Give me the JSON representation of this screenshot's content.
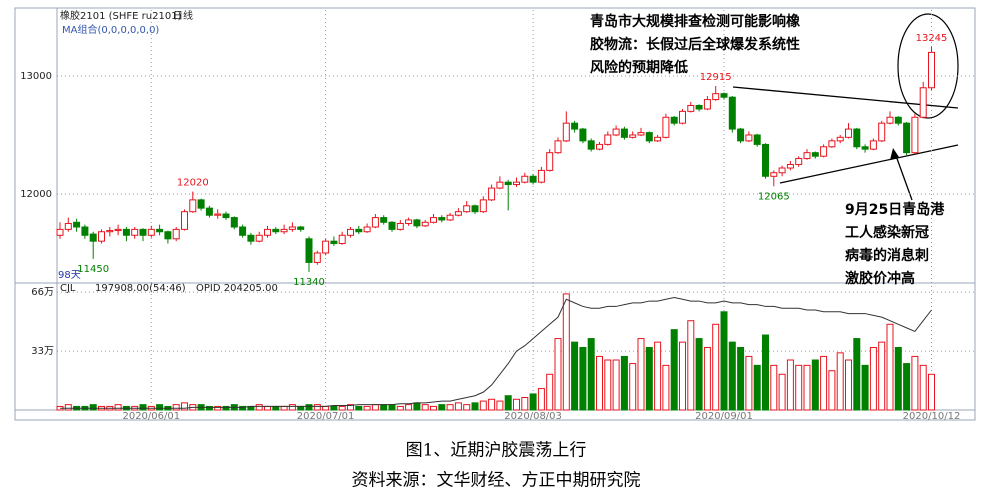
{
  "chart_data": {
    "type": "candlestick",
    "header": {
      "symbol": "橡胶2101 (SHFE ru2101)",
      "period": "日线",
      "ma": "MA组合(0,0,0,0,0,0)",
      "vol_name": "CJL",
      "vol_info": "197908.00(54:46)",
      "oi_info": "OPID 204205.00",
      "days": "98天"
    },
    "categories": [
      null,
      null,
      null,
      null,
      null,
      null,
      null,
      null,
      null,
      null,
      null,
      "2020/06/01",
      null,
      null,
      null,
      null,
      null,
      null,
      null,
      null,
      null,
      null,
      null,
      null,
      null,
      null,
      null,
      null,
      null,
      null,
      null,
      null,
      "2020/07/01",
      null,
      null,
      null,
      null,
      null,
      null,
      null,
      null,
      null,
      null,
      null,
      null,
      null,
      null,
      null,
      null,
      null,
      null,
      null,
      null,
      null,
      null,
      null,
      null,
      "2020/08/03",
      null,
      null,
      null,
      null,
      null,
      null,
      null,
      null,
      null,
      null,
      null,
      null,
      null,
      null,
      null,
      null,
      null,
      null,
      null,
      null,
      null,
      null,
      "2020/09/01",
      null,
      null,
      null,
      null,
      null,
      null,
      null,
      null,
      null,
      null,
      null,
      null,
      null,
      null,
      null,
      null,
      null,
      null,
      null,
      null,
      null,
      null,
      null,
      null,
      "2020/10/12"
    ],
    "ohlc": [
      [
        11650,
        11760,
        11620,
        11700
      ],
      [
        11700,
        11800,
        11680,
        11750
      ],
      [
        11760,
        11790,
        11680,
        11720
      ],
      [
        11720,
        11740,
        11620,
        11650
      ],
      [
        11660,
        11680,
        11450,
        11600
      ],
      [
        11600,
        11700,
        11580,
        11680
      ],
      [
        11680,
        11720,
        11640,
        11690
      ],
      [
        11690,
        11740,
        11650,
        11700
      ],
      [
        11700,
        11720,
        11600,
        11650
      ],
      [
        11650,
        11720,
        11620,
        11700
      ],
      [
        11700,
        11710,
        11600,
        11650
      ],
      [
        11650,
        11730,
        11630,
        11700
      ],
      [
        11700,
        11740,
        11650,
        11680
      ],
      [
        11680,
        11690,
        11580,
        11620
      ],
      [
        11620,
        11720,
        11600,
        11700
      ],
      [
        11700,
        11870,
        11690,
        11850
      ],
      [
        11850,
        12020,
        11840,
        11950
      ],
      [
        11950,
        11960,
        11860,
        11880
      ],
      [
        11880,
        11900,
        11800,
        11820
      ],
      [
        11820,
        11870,
        11790,
        11830
      ],
      [
        11830,
        11850,
        11780,
        11800
      ],
      [
        11800,
        11810,
        11700,
        11720
      ],
      [
        11720,
        11740,
        11630,
        11650
      ],
      [
        11650,
        11670,
        11570,
        11600
      ],
      [
        11600,
        11680,
        11590,
        11650
      ],
      [
        11650,
        11730,
        11630,
        11700
      ],
      [
        11700,
        11720,
        11660,
        11680
      ],
      [
        11680,
        11740,
        11660,
        11700
      ],
      [
        11700,
        11760,
        11680,
        11720
      ],
      [
        11720,
        11730,
        11680,
        11700
      ],
      [
        11620,
        11640,
        11340,
        11420
      ],
      [
        11420,
        11520,
        11400,
        11500
      ],
      [
        11500,
        11620,
        11480,
        11600
      ],
      [
        11600,
        11640,
        11560,
        11580
      ],
      [
        11580,
        11680,
        11570,
        11650
      ],
      [
        11650,
        11720,
        11630,
        11700
      ],
      [
        11700,
        11730,
        11660,
        11680
      ],
      [
        11680,
        11750,
        11670,
        11720
      ],
      [
        11720,
        11830,
        11710,
        11800
      ],
      [
        11800,
        11820,
        11740,
        11760
      ],
      [
        11760,
        11770,
        11680,
        11700
      ],
      [
        11700,
        11780,
        11690,
        11750
      ],
      [
        11750,
        11800,
        11730,
        11780
      ],
      [
        11780,
        11790,
        11710,
        11730
      ],
      [
        11730,
        11780,
        11720,
        11760
      ],
      [
        11760,
        11830,
        11750,
        11800
      ],
      [
        11800,
        11820,
        11760,
        11780
      ],
      [
        11780,
        11840,
        11770,
        11820
      ],
      [
        11820,
        11880,
        11810,
        11850
      ],
      [
        11850,
        11940,
        11840,
        11900
      ],
      [
        11900,
        11910,
        11830,
        11850
      ],
      [
        11850,
        11980,
        11840,
        11950
      ],
      [
        11950,
        12080,
        11940,
        12050
      ],
      [
        12050,
        12150,
        12040,
        12100
      ],
      [
        12100,
        12120,
        11860,
        12080
      ],
      [
        12080,
        12140,
        12060,
        12100
      ],
      [
        12100,
        12180,
        12090,
        12150
      ],
      [
        12150,
        12170,
        12080,
        12100
      ],
      [
        12100,
        12230,
        12090,
        12200
      ],
      [
        12200,
        12380,
        12190,
        12350
      ],
      [
        12350,
        12480,
        12340,
        12450
      ],
      [
        12450,
        12700,
        12440,
        12600
      ],
      [
        12600,
        12620,
        12520,
        12550
      ],
      [
        12550,
        12560,
        12430,
        12450
      ],
      [
        12450,
        12470,
        12360,
        12380
      ],
      [
        12380,
        12440,
        12370,
        12420
      ],
      [
        12420,
        12530,
        12410,
        12500
      ],
      [
        12500,
        12580,
        12490,
        12550
      ],
      [
        12550,
        12570,
        12460,
        12480
      ],
      [
        12480,
        12530,
        12470,
        12500
      ],
      [
        12500,
        12560,
        12490,
        12520
      ],
      [
        12520,
        12530,
        12430,
        12450
      ],
      [
        12450,
        12500,
        12440,
        12480
      ],
      [
        12480,
        12680,
        12470,
        12650
      ],
      [
        12650,
        12660,
        12580,
        12600
      ],
      [
        12600,
        12720,
        12590,
        12700
      ],
      [
        12700,
        12780,
        12690,
        12750
      ],
      [
        12750,
        12760,
        12700,
        12720
      ],
      [
        12720,
        12830,
        12710,
        12800
      ],
      [
        12800,
        12915,
        12790,
        12850
      ],
      [
        12850,
        12860,
        12800,
        12820
      ],
      [
        12820,
        12830,
        12520,
        12550
      ],
      [
        12550,
        12560,
        12430,
        12450
      ],
      [
        12450,
        12530,
        12440,
        12500
      ],
      [
        12500,
        12510,
        12400,
        12420
      ],
      [
        12420,
        12430,
        12130,
        12150
      ],
      [
        12150,
        12200,
        12065,
        12180
      ],
      [
        12180,
        12240,
        12150,
        12220
      ],
      [
        12220,
        12280,
        12200,
        12250
      ],
      [
        12250,
        12320,
        12230,
        12300
      ],
      [
        12300,
        12380,
        12290,
        12350
      ],
      [
        12350,
        12360,
        12300,
        12320
      ],
      [
        12320,
        12420,
        12310,
        12400
      ],
      [
        12400,
        12470,
        12390,
        12450
      ],
      [
        12450,
        12500,
        12430,
        12480
      ],
      [
        12480,
        12600,
        12470,
        12550
      ],
      [
        12550,
        12560,
        12380,
        12400
      ],
      [
        12400,
        12420,
        12350,
        12380
      ],
      [
        12380,
        12470,
        12370,
        12450
      ],
      [
        12450,
        12620,
        12440,
        12600
      ],
      [
        12600,
        12700,
        12590,
        12650
      ],
      [
        12650,
        12660,
        12580,
        12600
      ],
      [
        12600,
        12610,
        12330,
        12350
      ],
      [
        12350,
        12680,
        12340,
        12650
      ],
      [
        12650,
        12950,
        12640,
        12900
      ],
      [
        12900,
        13245,
        12880,
        13200
      ]
    ],
    "price_labels": [
      12020,
      11450,
      11340,
      12915,
      12065,
      13245
    ],
    "ylim": [
      11271,
      13559
    ],
    "yticks": [
      12000,
      13000
    ],
    "volume": [
      2,
      3,
      2,
      2,
      3,
      2,
      2,
      3,
      2,
      2,
      3,
      2,
      3,
      2,
      3,
      4,
      3,
      3,
      2,
      2,
      2,
      3,
      2,
      2,
      3,
      2,
      2,
      2,
      3,
      2,
      3,
      3,
      2,
      2,
      2,
      3,
      2,
      2,
      3,
      3,
      3,
      2,
      3,
      4,
      3,
      2,
      3,
      3,
      4,
      3,
      4,
      5,
      6,
      5,
      8,
      6,
      7,
      9,
      12,
      20,
      40,
      65,
      38,
      35,
      40,
      30,
      28,
      28,
      30,
      26,
      40,
      35,
      38,
      25,
      45,
      38,
      50,
      40,
      35,
      48,
      55,
      38,
      35,
      30,
      25,
      42,
      25,
      20,
      28,
      25,
      25,
      28,
      30,
      22,
      32,
      28,
      40,
      25,
      35,
      38,
      48,
      35,
      26,
      30,
      25,
      20
    ],
    "open_interest": [
      1,
      1,
      1,
      1,
      1,
      1,
      1,
      1,
      1,
      1,
      1,
      1,
      1,
      1,
      1,
      1,
      1.5,
      1.5,
      1.5,
      1.5,
      1.5,
      1.5,
      1.5,
      2,
      2,
      2,
      2,
      2,
      2,
      2,
      2,
      2,
      2,
      2.5,
      2.5,
      2.5,
      3,
      3,
      3,
      3,
      3,
      3.5,
      3.5,
      4,
      4,
      4.5,
      5,
      5,
      6,
      7,
      8,
      10,
      14,
      20,
      26,
      33,
      36,
      40,
      44,
      48,
      52,
      62,
      60,
      58,
      57,
      57,
      58,
      58,
      59,
      60,
      60,
      61,
      61,
      62,
      63,
      62,
      61,
      61,
      60,
      60,
      61,
      60,
      60,
      59,
      59,
      58,
      58,
      57,
      57,
      57,
      56,
      56,
      55,
      55,
      55,
      54,
      54,
      54,
      53,
      52,
      50,
      48,
      46,
      44,
      50,
      56
    ],
    "vlim": [
      0,
      70
    ],
    "vticks": [
      {
        "value": 66,
        "label": "66万"
      },
      {
        "value": 33,
        "label": "33万"
      }
    ],
    "up_color": "#e8141e",
    "down_color": "#008000",
    "line_color": "#333333",
    "grid": true,
    "annotations": [
      [
        "青岛市大规模排查检测可能影响橡",
        "胶物流：长假过后全球爆发系统性",
        "风险的预期降低"
      ],
      [
        "9月25日青岛港",
        "工人感染新冠",
        "病毒的消息刺",
        "激胶价冲高"
      ]
    ],
    "caption": "图1、近期沪胶震荡上行",
    "source": "资料来源：文华财经、方正中期研究院"
  }
}
